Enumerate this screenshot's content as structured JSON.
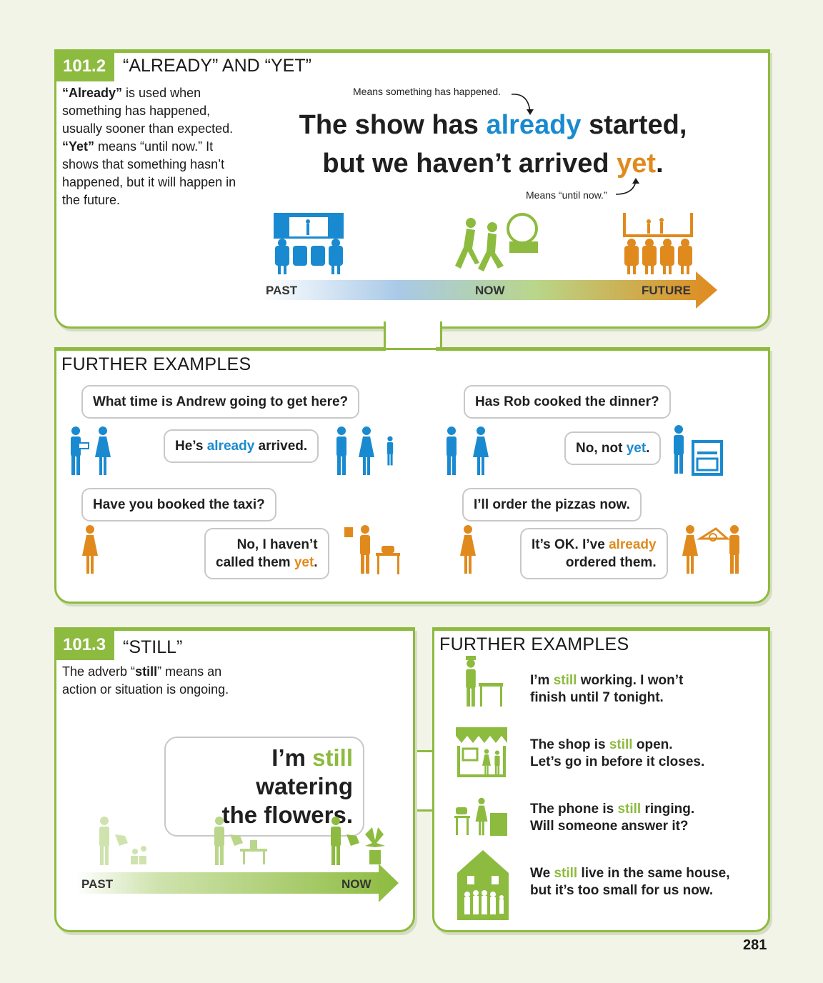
{
  "section1": {
    "number": "101.2",
    "title": "“ALREADY” AND “YET”",
    "description": {
      "p1_bold": "“Already”",
      "p1_rest": " is used when something has happened, usually sooner than expected. ",
      "p2_bold": "“Yet”",
      "p2_rest": " means “until now.” It shows that something hasn’t happened, but it will happen in the future."
    },
    "note_top": "Means something has happened.",
    "note_bottom": "Means “until now.”",
    "sentence": {
      "part1": "The show has ",
      "already": "already",
      "part2": " started,",
      "part3": "but we haven’t arrived ",
      "yet": "yet",
      "part4": "."
    },
    "timeline": {
      "past": "PAST",
      "now": "NOW",
      "future": "FUTURE"
    }
  },
  "further1": {
    "title": "FURTHER EXAMPLES",
    "q1": "What time is Andrew going to get here?",
    "a1_pre": "He’s ",
    "a1_hl": "already",
    "a1_post": " arrived.",
    "q2": "Has Rob cooked the dinner?",
    "a2_pre": "No, not ",
    "a2_hl": "yet",
    "a2_post": ".",
    "q3": "Have you booked the taxi?",
    "a3_line1": "No, I haven’t",
    "a3_pre": "called them ",
    "a3_hl": "yet",
    "a3_post": ".",
    "q4": "I’ll order the pizzas now.",
    "a4_pre": "It’s OK. I’ve ",
    "a4_hl": "already",
    "a4_line2": "ordered them."
  },
  "section2": {
    "number": "101.3",
    "title": "“STILL”",
    "desc_pre": "The adverb “",
    "desc_bold": "still",
    "desc_post": "” means an action or situation is ongoing.",
    "bubble_pre": "I’m ",
    "bubble_hl": "still",
    "bubble_post": " watering",
    "bubble_line2": "the flowers.",
    "timeline": {
      "past": "PAST",
      "now": "NOW"
    }
  },
  "further2": {
    "title": "FURTHER EXAMPLES",
    "items": [
      {
        "pre": "I’m ",
        "hl": "still",
        "post": " working. I won’t",
        "line2": "finish until 7 tonight."
      },
      {
        "pre": "The shop is ",
        "hl": "still",
        "post": " open.",
        "line2": "Let’s go in before it closes."
      },
      {
        "pre": "The phone is ",
        "hl": "still",
        "post": " ringing.",
        "line2": "Will someone answer it?"
      },
      {
        "pre": "We ",
        "hl": "still",
        "post": " live in the same house,",
        "line2": "but it’s too small for us now."
      }
    ]
  },
  "page_number": "281",
  "colors": {
    "green": "#8dbb3f",
    "blue": "#1a8ad0",
    "orange": "#e08a1e",
    "light_green": "#b9d68a"
  }
}
